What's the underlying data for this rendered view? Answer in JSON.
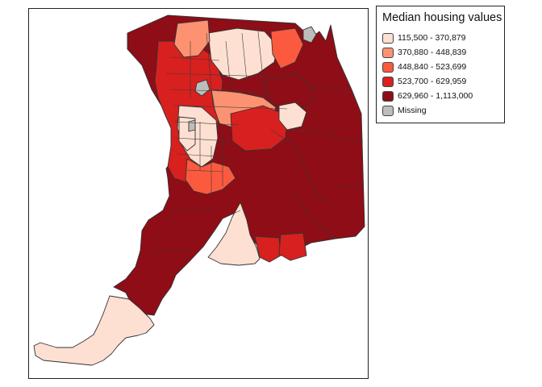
{
  "legend": {
    "title": "Median housing values",
    "items": [
      {
        "label": "115,500 - 370,879",
        "color": "#fee0d2"
      },
      {
        "label": "370,880 - 448,839",
        "color": "#fc9272"
      },
      {
        "label": "448,840 - 523,699",
        "color": "#fb5a3f"
      },
      {
        "label": "523,700 - 629,959",
        "color": "#d8201f"
      },
      {
        "label": "629,960 - 1,113,000",
        "color": "#8f0d16"
      },
      {
        "label": "Missing",
        "color": "#bdbdbd"
      }
    ]
  },
  "map": {
    "classes": [
      "class-1",
      "class-2",
      "class-3",
      "class-4",
      "class-5",
      "missing"
    ],
    "border_color": "#333333"
  }
}
